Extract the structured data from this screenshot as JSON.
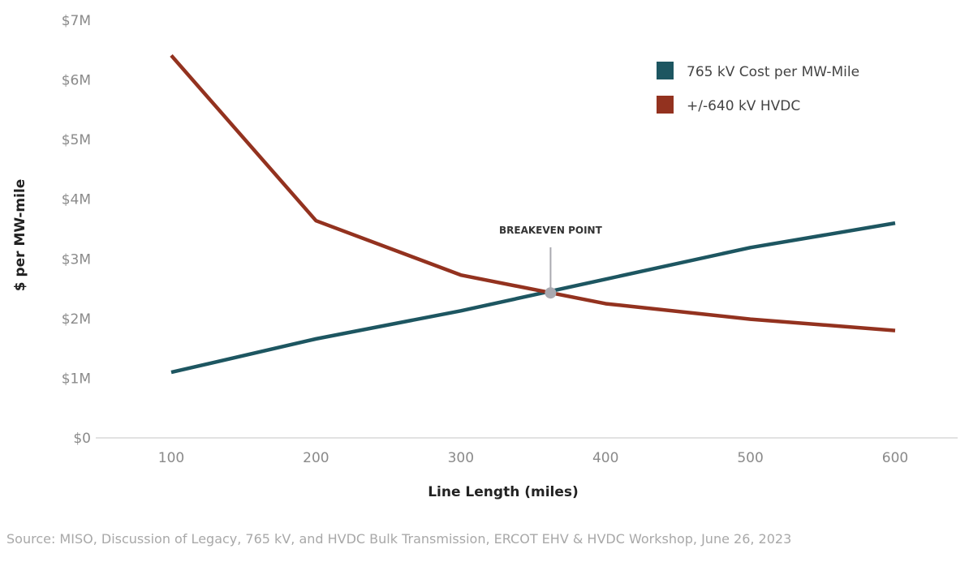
{
  "chart_data": {
    "type": "line",
    "title": "",
    "xlabel": "Line Length (miles)",
    "ylabel": "$ per MW-mile",
    "x": [
      100,
      200,
      300,
      400,
      500,
      600
    ],
    "xlim": [
      50,
      650
    ],
    "ylim": [
      0,
      7000000
    ],
    "x_ticks": [
      "100",
      "200",
      "300",
      "400",
      "500",
      "600"
    ],
    "y_ticks": [
      {
        "value": 0,
        "label": "$0"
      },
      {
        "value": 1000000,
        "label": "$1M"
      },
      {
        "value": 2000000,
        "label": "$2M"
      },
      {
        "value": 3000000,
        "label": "$3M"
      },
      {
        "value": 4000000,
        "label": "$4M"
      },
      {
        "value": 5000000,
        "label": "$5M"
      },
      {
        "value": 6000000,
        "label": "$6M"
      },
      {
        "value": 7000000,
        "label": "$7M"
      }
    ],
    "grid": false,
    "legend_position": "top-right",
    "series": [
      {
        "name": "765 kV Cost per MW-Mile",
        "color": "#1d5661",
        "values": [
          1100000,
          1660000,
          2130000,
          2660000,
          3190000,
          3600000
        ]
      },
      {
        "name": "+/-640 kV HVDC",
        "color": "#93321f",
        "values": [
          6410000,
          3640000,
          2730000,
          2250000,
          1990000,
          1800000
        ]
      }
    ],
    "annotations": [
      {
        "text": "BREAKEVEN POINT",
        "x": 362,
        "y": 2430000,
        "color": "#a9a9b0"
      }
    ]
  },
  "source": "Source: MISO, Discussion of Legacy, 765 kV, and HVDC Bulk Transmission, ERCOT EHV & HVDC Workshop, June 26, 2023"
}
